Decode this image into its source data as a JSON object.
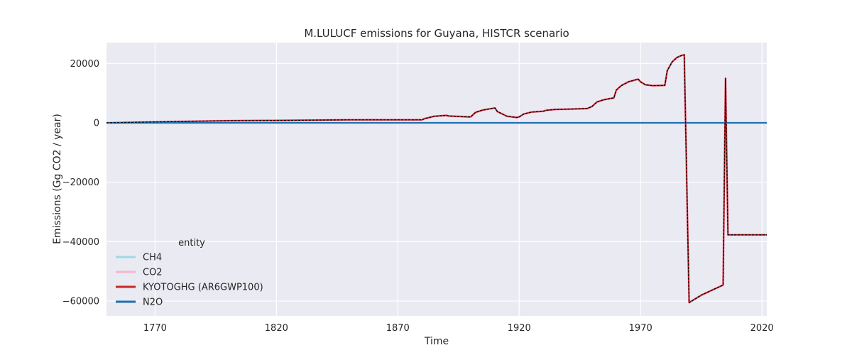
{
  "chart_data": {
    "type": "line",
    "title": "M.LULUCF emissions for Guyana, HISTCR scenario",
    "xlabel": "Time",
    "ylabel": "Emissions (Gg CO2 / year)",
    "xlim": [
      1750,
      2022
    ],
    "ylim": [
      -65000,
      27000
    ],
    "x_ticks": [
      1770,
      1820,
      1870,
      1920,
      1970,
      2020
    ],
    "y_ticks": [
      20000,
      0,
      -20000,
      -40000,
      -60000
    ],
    "y_tick_labels": [
      "20000",
      "0",
      "−20000",
      "−40000",
      "−60000"
    ],
    "grid": true,
    "legend_position": "lower-left",
    "legend_title": "entity",
    "background_color": "#eaeaf2",
    "series": [
      {
        "name": "CH4",
        "color": "#9ed9e6",
        "x": [
          1750,
          1890,
          1891,
          2022
        ],
        "y": [
          0,
          0,
          0,
          0
        ]
      },
      {
        "name": "CO2",
        "color": "#f4b6cf",
        "x": [
          1750,
          1770,
          1800,
          1820,
          1850,
          1880,
          1881,
          1885,
          1890,
          1891,
          1899,
          1900,
          1902,
          1905,
          1910,
          1911,
          1915,
          1919,
          1920,
          1922,
          1925,
          1930,
          1931,
          1935,
          1940,
          1948,
          1950,
          1952,
          1955,
          1959,
          1960,
          1962,
          1965,
          1969,
          1970,
          1972,
          1975,
          1980,
          1981,
          1983,
          1985,
          1987,
          1988,
          1990,
          1995,
          2004,
          2005,
          2006,
          2022
        ],
        "y": [
          0,
          300,
          700,
          800,
          1000,
          1000,
          1400,
          2200,
          2500,
          2300,
          2000,
          2000,
          3500,
          4300,
          5000,
          3800,
          2200,
          1800,
          2000,
          3000,
          3600,
          3900,
          4200,
          4500,
          4600,
          4800,
          5500,
          7000,
          7800,
          8400,
          11000,
          12500,
          13800,
          14700,
          13800,
          12800,
          12500,
          12600,
          17600,
          20500,
          22000,
          22700,
          22900,
          -60500,
          -58000,
          -54600,
          15000,
          -37700,
          -37700
        ]
      },
      {
        "name": "KYOTOGHG (AR6GWP100)",
        "color": "#c62828",
        "x": [
          1750,
          1770,
          1800,
          1820,
          1850,
          1880,
          1881,
          1885,
          1890,
          1891,
          1899,
          1900,
          1902,
          1905,
          1910,
          1911,
          1915,
          1919,
          1920,
          1922,
          1925,
          1930,
          1931,
          1935,
          1940,
          1948,
          1950,
          1952,
          1955,
          1959,
          1960,
          1962,
          1965,
          1969,
          1970,
          1972,
          1975,
          1980,
          1981,
          1983,
          1985,
          1987,
          1988,
          1990,
          1995,
          2004,
          2005,
          2006,
          2022
        ],
        "y": [
          0,
          300,
          700,
          800,
          1000,
          1000,
          1400,
          2200,
          2500,
          2300,
          2000,
          2000,
          3500,
          4300,
          5000,
          3800,
          2200,
          1800,
          2000,
          3000,
          3600,
          3900,
          4200,
          4500,
          4600,
          4800,
          5500,
          7000,
          7800,
          8400,
          11000,
          12500,
          13800,
          14700,
          13800,
          12800,
          12500,
          12600,
          17600,
          20500,
          22000,
          22700,
          22900,
          -60500,
          -58000,
          -54600,
          15000,
          -37700,
          -37700
        ]
      },
      {
        "name": "N2O",
        "color": "#1f6fb2",
        "x": [
          1750,
          2022
        ],
        "y": [
          0,
          0
        ]
      }
    ]
  }
}
